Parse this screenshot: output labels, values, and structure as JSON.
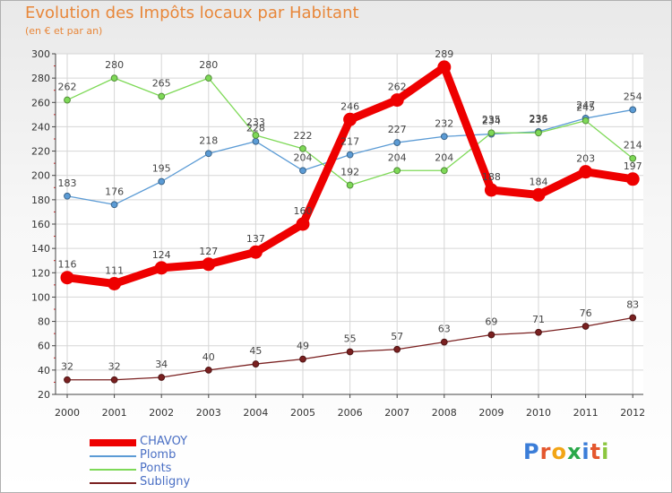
{
  "title": "Evolution des Impôts locaux par Habitant",
  "subtitle": "(en € et par an)",
  "brand": {
    "text": "Proxiti",
    "letter_colors": [
      "#3b7dd8",
      "#e4572e",
      "#f2a516",
      "#2aa84a",
      "#3b7dd8",
      "#e4572e",
      "#8cc63f"
    ]
  },
  "chart_data": {
    "type": "line",
    "title": "Evolution des Impôts locaux par Habitant",
    "subtitle": "(en € et par an)",
    "x": [
      "2000",
      "2001",
      "2002",
      "2003",
      "2004",
      "2005",
      "2006",
      "2007",
      "2008",
      "2009",
      "2010",
      "2011",
      "2012"
    ],
    "ylim": [
      20,
      300
    ],
    "yticks": [
      20,
      40,
      60,
      80,
      100,
      120,
      140,
      160,
      180,
      200,
      220,
      240,
      260,
      280,
      300
    ],
    "grid": true,
    "legend_position": "bottom-left",
    "series": [
      {
        "name": "CHAVOY",
        "color": "#ee0000",
        "highlight": true,
        "values": [
          116,
          111,
          124,
          127,
          137,
          160,
          246,
          262,
          289,
          188,
          184,
          203,
          197
        ],
        "labels": [
          "116",
          "111",
          "124",
          "127",
          "137",
          "160",
          "246",
          "262",
          "289",
          "188",
          "184",
          "203",
          "197"
        ]
      },
      {
        "name": "Plomb",
        "color": "#5b9bd5",
        "highlight": false,
        "values": [
          183,
          176,
          195,
          218,
          228,
          204,
          217,
          227,
          232,
          234,
          236,
          247,
          254
        ],
        "labels": [
          "183",
          "176",
          "195",
          "218",
          "228",
          "204",
          "217",
          "227",
          "232",
          "234",
          "236",
          "247",
          "254"
        ]
      },
      {
        "name": "Ponts",
        "color": "#7ed957",
        "highlight": false,
        "values": [
          262,
          280,
          265,
          280,
          233,
          222,
          192,
          204,
          204,
          235,
          235,
          245,
          214
        ],
        "labels": [
          "262",
          "280",
          "265",
          "280",
          "233",
          "222",
          "192",
          "204",
          "204",
          "235",
          "235",
          "245",
          "214"
        ]
      },
      {
        "name": "Subligny",
        "color": "#7a2020",
        "highlight": false,
        "values": [
          32,
          32,
          34,
          40,
          45,
          49,
          55,
          57,
          63,
          69,
          71,
          76,
          83
        ],
        "labels": [
          "32",
          "32",
          "34",
          "40",
          "45",
          "49",
          "55",
          "57",
          "63",
          "69",
          "71",
          "76",
          "83"
        ]
      }
    ]
  }
}
